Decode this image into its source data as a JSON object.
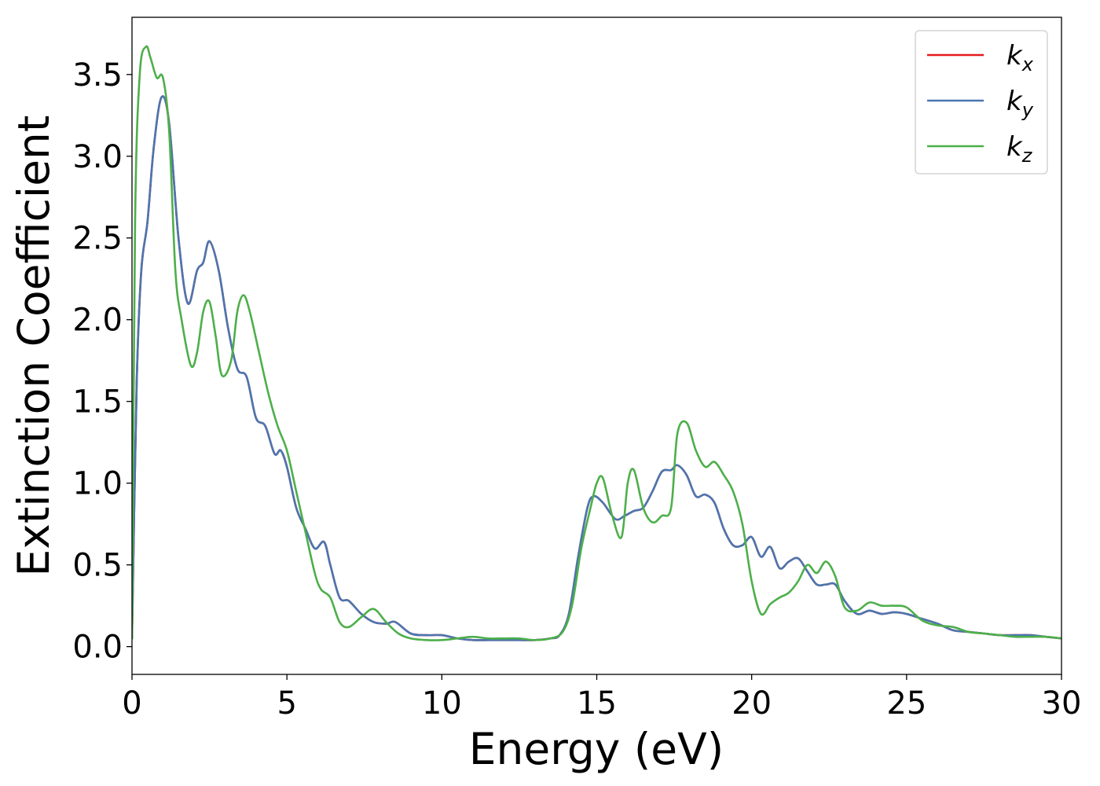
{
  "chart_data": {
    "type": "line",
    "title": "",
    "xlabel": "Energy (eV)",
    "ylabel": "Extinction Coefficient",
    "xlim": [
      0,
      30
    ],
    "ylim": [
      -0.17,
      3.85
    ],
    "xticks": [
      "0",
      "5",
      "10",
      "15",
      "20",
      "25",
      "30"
    ],
    "yticks": [
      "0.0",
      "0.5",
      "1.0",
      "1.5",
      "2.0",
      "2.5",
      "3.0",
      "3.5"
    ],
    "grid": false,
    "legend_position": "top-right",
    "series": [
      {
        "name": "k_x",
        "legend_base": "k",
        "legend_sub": "x",
        "color": "#e41a1c",
        "x": [
          0,
          0.15,
          0.3,
          0.5,
          0.7,
          0.95,
          1.2,
          1.5,
          1.8,
          2.1,
          2.3,
          2.5,
          2.8,
          3.1,
          3.4,
          3.7,
          4.0,
          4.3,
          4.6,
          4.8,
          5.0,
          5.3,
          5.6,
          5.9,
          6.2,
          6.4,
          6.7,
          7.0,
          7.4,
          7.8,
          8.2,
          8.5,
          9.0,
          9.5,
          10.0,
          10.5,
          11.0,
          11.5,
          12.0,
          12.5,
          13.0,
          13.5,
          13.8,
          14.1,
          14.4,
          14.7,
          14.9,
          15.2,
          15.6,
          15.9,
          16.2,
          16.5,
          16.8,
          17.1,
          17.4,
          17.6,
          17.9,
          18.2,
          18.5,
          18.8,
          19.1,
          19.4,
          19.7,
          20.0,
          20.3,
          20.6,
          20.9,
          21.2,
          21.5,
          21.8,
          22.1,
          22.4,
          22.7,
          23.0,
          23.4,
          23.8,
          24.2,
          24.6,
          25.0,
          25.5,
          26.0,
          26.5,
          27.0,
          27.5,
          28.0,
          28.5,
          29.0,
          29.5,
          30.0
        ],
        "values": [
          0.05,
          1.6,
          2.3,
          2.6,
          3.05,
          3.36,
          3.2,
          2.5,
          2.1,
          2.3,
          2.35,
          2.48,
          2.3,
          1.95,
          1.7,
          1.65,
          1.4,
          1.35,
          1.18,
          1.2,
          1.1,
          0.85,
          0.72,
          0.6,
          0.64,
          0.5,
          0.3,
          0.28,
          0.2,
          0.15,
          0.14,
          0.15,
          0.08,
          0.07,
          0.07,
          0.05,
          0.04,
          0.04,
          0.04,
          0.04,
          0.04,
          0.05,
          0.07,
          0.2,
          0.55,
          0.85,
          0.92,
          0.88,
          0.78,
          0.8,
          0.83,
          0.85,
          0.95,
          1.07,
          1.08,
          1.11,
          1.05,
          0.92,
          0.93,
          0.88,
          0.72,
          0.62,
          0.62,
          0.67,
          0.55,
          0.61,
          0.48,
          0.52,
          0.54,
          0.46,
          0.38,
          0.38,
          0.38,
          0.28,
          0.2,
          0.22,
          0.2,
          0.21,
          0.2,
          0.17,
          0.14,
          0.1,
          0.09,
          0.08,
          0.07,
          0.07,
          0.07,
          0.06,
          0.05
        ]
      },
      {
        "name": "k_y",
        "legend_base": "k",
        "legend_sub": "y",
        "color": "#4a76b0",
        "x": [
          0,
          0.15,
          0.3,
          0.5,
          0.7,
          0.95,
          1.2,
          1.5,
          1.8,
          2.1,
          2.3,
          2.5,
          2.8,
          3.1,
          3.4,
          3.7,
          4.0,
          4.3,
          4.6,
          4.8,
          5.0,
          5.3,
          5.6,
          5.9,
          6.2,
          6.4,
          6.7,
          7.0,
          7.4,
          7.8,
          8.2,
          8.5,
          9.0,
          9.5,
          10.0,
          10.5,
          11.0,
          11.5,
          12.0,
          12.5,
          13.0,
          13.5,
          13.8,
          14.1,
          14.4,
          14.7,
          14.9,
          15.2,
          15.6,
          15.9,
          16.2,
          16.5,
          16.8,
          17.1,
          17.4,
          17.6,
          17.9,
          18.2,
          18.5,
          18.8,
          19.1,
          19.4,
          19.7,
          20.0,
          20.3,
          20.6,
          20.9,
          21.2,
          21.5,
          21.8,
          22.1,
          22.4,
          22.7,
          23.0,
          23.4,
          23.8,
          24.2,
          24.6,
          25.0,
          25.5,
          26.0,
          26.5,
          27.0,
          27.5,
          28.0,
          28.5,
          29.0,
          29.5,
          30.0
        ],
        "values": [
          0.05,
          1.6,
          2.3,
          2.6,
          3.05,
          3.36,
          3.2,
          2.5,
          2.1,
          2.3,
          2.35,
          2.48,
          2.3,
          1.95,
          1.7,
          1.65,
          1.4,
          1.35,
          1.18,
          1.2,
          1.1,
          0.85,
          0.72,
          0.6,
          0.64,
          0.5,
          0.3,
          0.28,
          0.2,
          0.15,
          0.14,
          0.15,
          0.08,
          0.07,
          0.07,
          0.05,
          0.04,
          0.04,
          0.04,
          0.04,
          0.04,
          0.05,
          0.07,
          0.2,
          0.55,
          0.85,
          0.92,
          0.88,
          0.78,
          0.8,
          0.83,
          0.85,
          0.95,
          1.07,
          1.08,
          1.11,
          1.05,
          0.92,
          0.93,
          0.88,
          0.72,
          0.62,
          0.62,
          0.67,
          0.55,
          0.61,
          0.48,
          0.52,
          0.54,
          0.46,
          0.38,
          0.38,
          0.38,
          0.28,
          0.2,
          0.22,
          0.2,
          0.21,
          0.2,
          0.17,
          0.14,
          0.1,
          0.09,
          0.08,
          0.07,
          0.07,
          0.07,
          0.06,
          0.05
        ]
      },
      {
        "name": "k_z",
        "legend_base": "k",
        "legend_sub": "z",
        "color": "#4daf4a",
        "x": [
          0,
          0.1,
          0.25,
          0.45,
          0.6,
          0.8,
          1.0,
          1.2,
          1.4,
          1.6,
          1.9,
          2.1,
          2.3,
          2.5,
          2.7,
          2.9,
          3.2,
          3.4,
          3.6,
          3.8,
          4.1,
          4.4,
          4.7,
          5.0,
          5.3,
          5.6,
          5.9,
          6.1,
          6.4,
          6.7,
          7.0,
          7.4,
          7.8,
          8.2,
          8.6,
          9.0,
          9.5,
          10.0,
          10.5,
          11.0,
          11.5,
          12.0,
          12.5,
          13.0,
          13.5,
          13.9,
          14.2,
          14.5,
          14.8,
          15.0,
          15.2,
          15.5,
          15.8,
          16.0,
          16.2,
          16.5,
          16.8,
          17.1,
          17.4,
          17.6,
          17.9,
          18.2,
          18.5,
          18.8,
          19.1,
          19.4,
          19.7,
          20.0,
          20.3,
          20.6,
          20.9,
          21.2,
          21.5,
          21.8,
          22.1,
          22.4,
          22.7,
          23.0,
          23.4,
          23.8,
          24.2,
          24.6,
          25.0,
          25.5,
          26.0,
          26.5,
          27.0,
          27.5,
          28.0,
          28.5,
          29.0,
          29.5,
          30.0
        ],
        "values": [
          0.05,
          2.6,
          3.5,
          3.67,
          3.6,
          3.48,
          3.48,
          3.15,
          2.3,
          2.0,
          1.72,
          1.8,
          2.05,
          2.11,
          1.9,
          1.66,
          1.75,
          2.05,
          2.15,
          2.05,
          1.8,
          1.55,
          1.35,
          1.2,
          0.95,
          0.7,
          0.45,
          0.35,
          0.3,
          0.15,
          0.12,
          0.18,
          0.23,
          0.15,
          0.08,
          0.05,
          0.04,
          0.04,
          0.05,
          0.06,
          0.05,
          0.05,
          0.05,
          0.04,
          0.05,
          0.09,
          0.25,
          0.6,
          0.85,
          1.0,
          1.03,
          0.8,
          0.67,
          1.0,
          1.08,
          0.85,
          0.76,
          0.8,
          0.85,
          1.3,
          1.37,
          1.2,
          1.1,
          1.13,
          1.05,
          0.95,
          0.75,
          0.4,
          0.2,
          0.26,
          0.3,
          0.33,
          0.4,
          0.5,
          0.45,
          0.52,
          0.43,
          0.24,
          0.22,
          0.27,
          0.25,
          0.25,
          0.24,
          0.16,
          0.13,
          0.12,
          0.09,
          0.08,
          0.07,
          0.06,
          0.06,
          0.06,
          0.05
        ]
      }
    ]
  }
}
